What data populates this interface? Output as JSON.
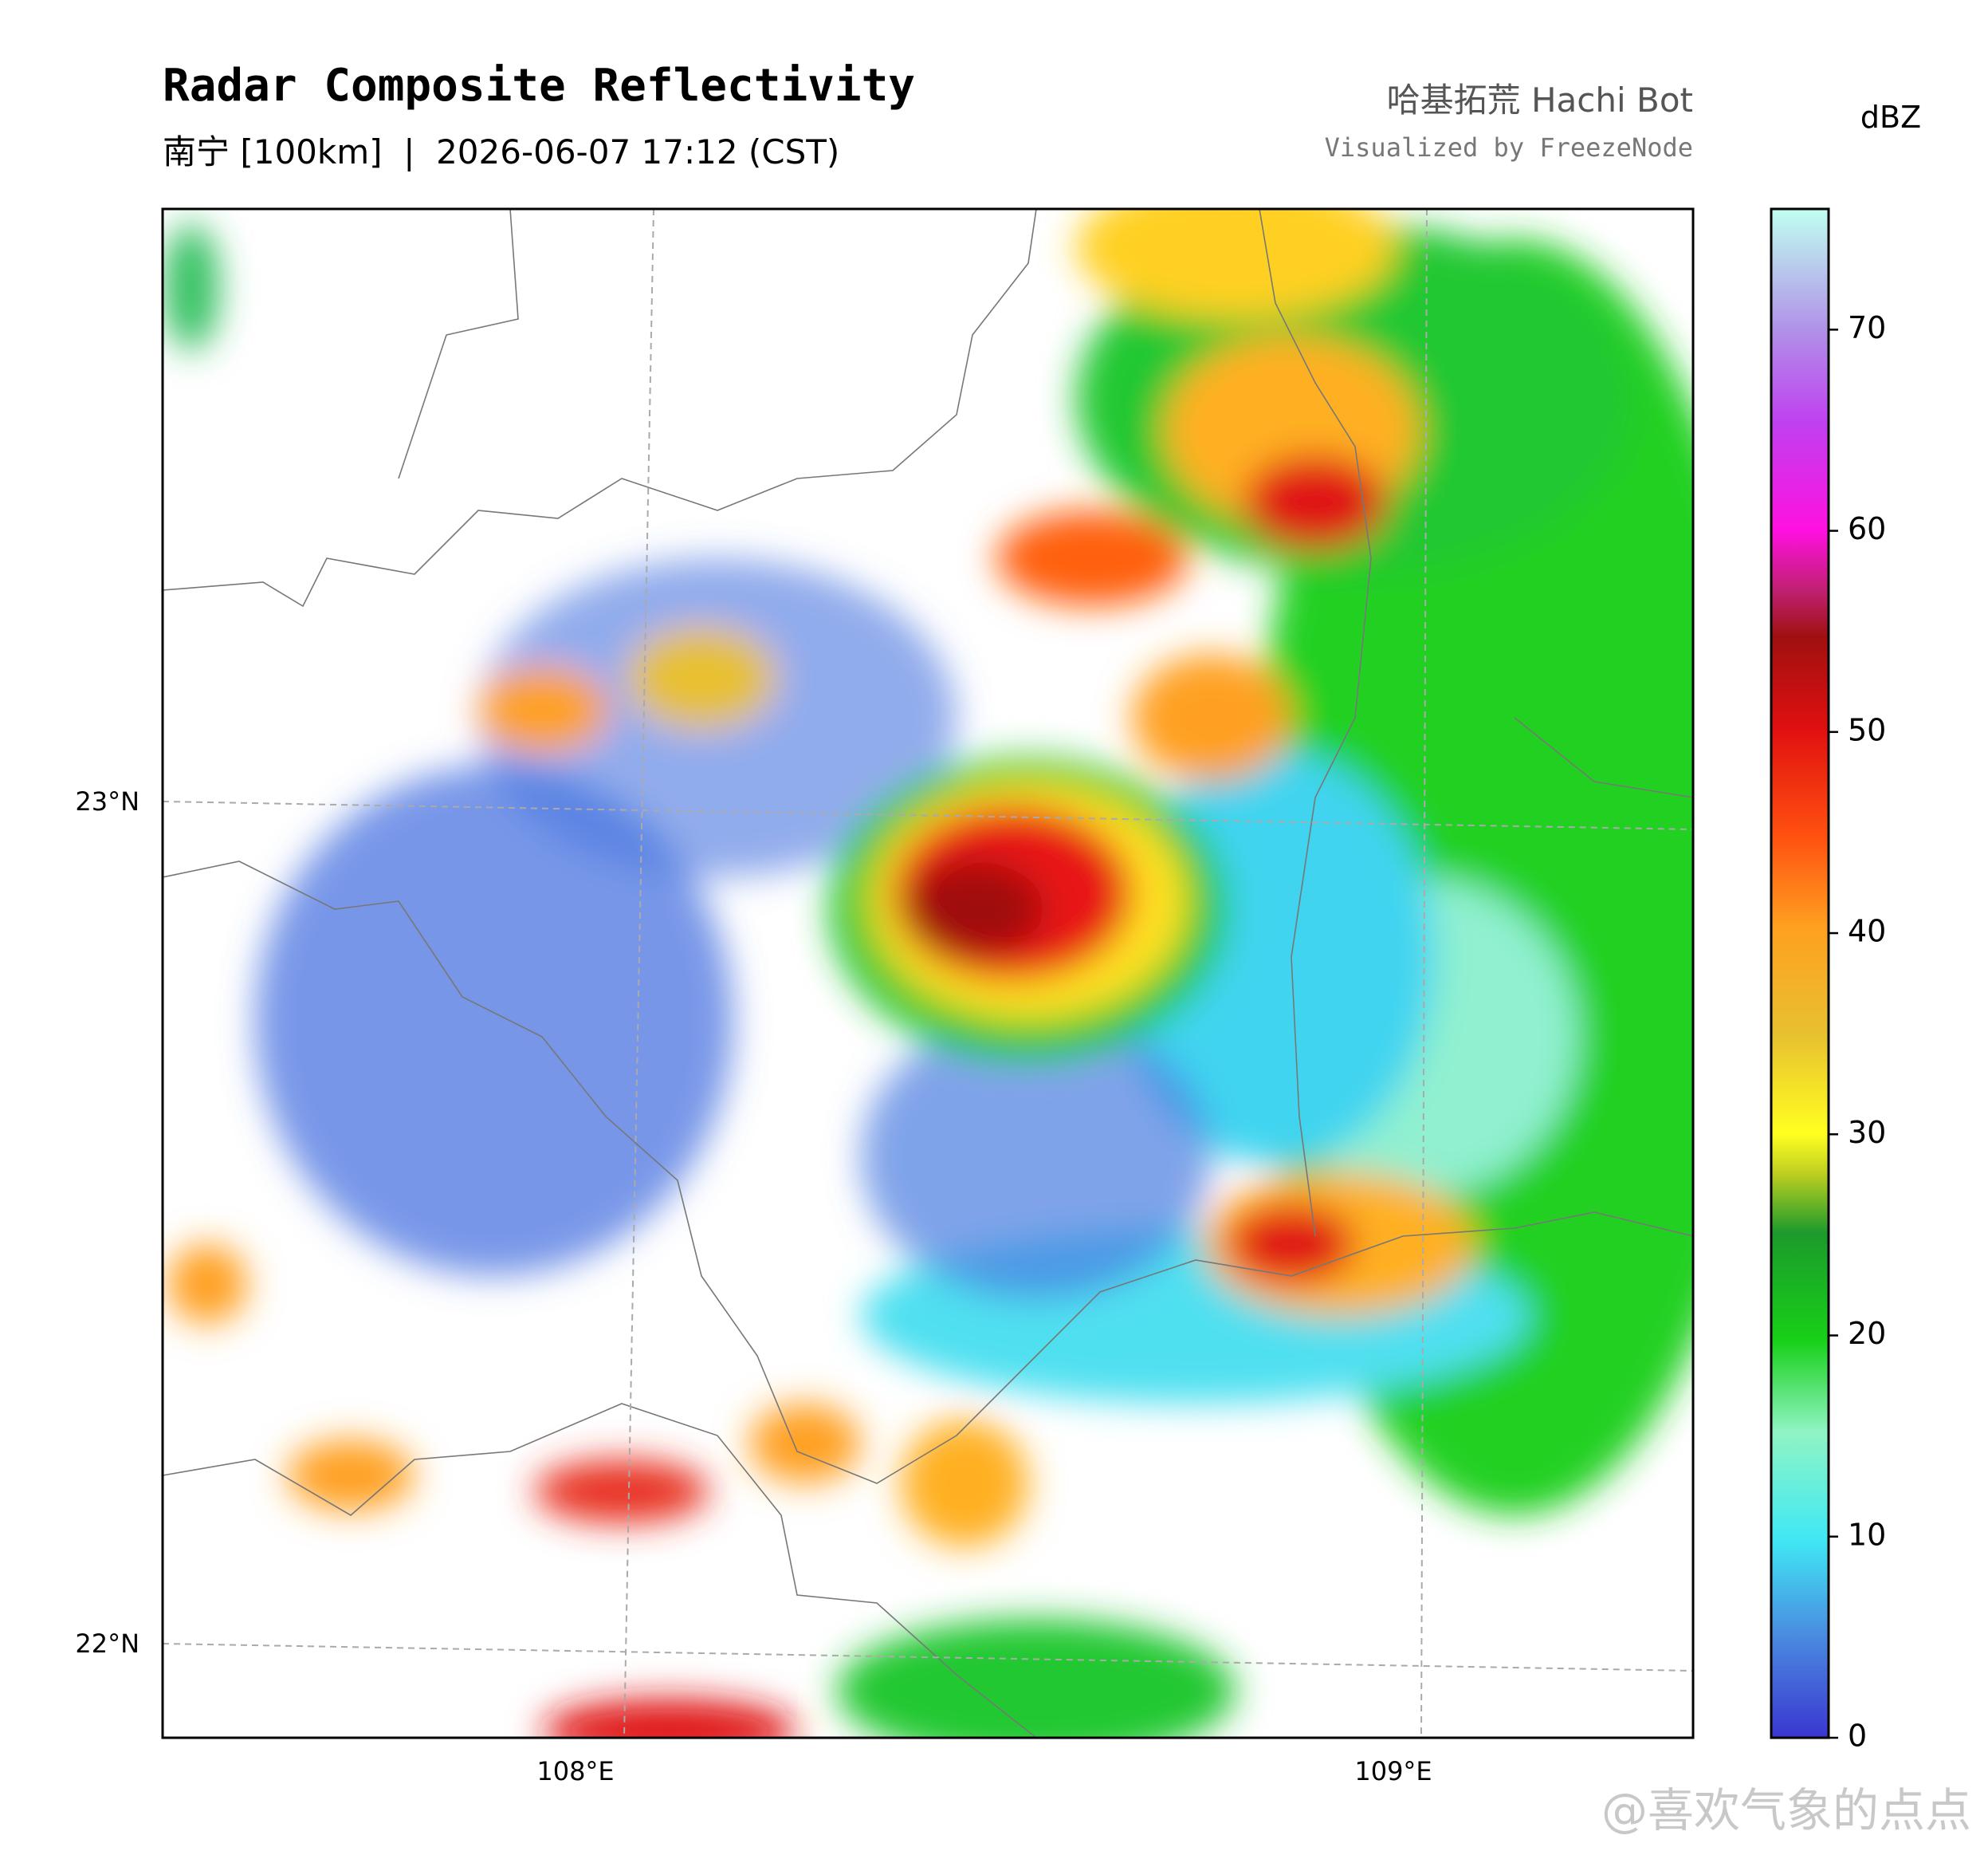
{
  "header": {
    "title": "Radar Composite Reflectivity",
    "subtitle": "南宁 [100km]  |  2026-06-07 17:12 (CST)",
    "credit": "哈基拓荒 Hachi Bot",
    "visualized": "Visualized by FreezeNode"
  },
  "map": {
    "lat_labels": [
      "23°N",
      "22°N"
    ],
    "lon_labels": [
      "108°E",
      "109°E"
    ]
  },
  "colorbar": {
    "label": "dBZ",
    "lim": [
      0,
      76
    ],
    "ticks": [
      0,
      10,
      20,
      30,
      40,
      50,
      60,
      70
    ]
  },
  "watermark": "@喜欢气象的点点"
}
